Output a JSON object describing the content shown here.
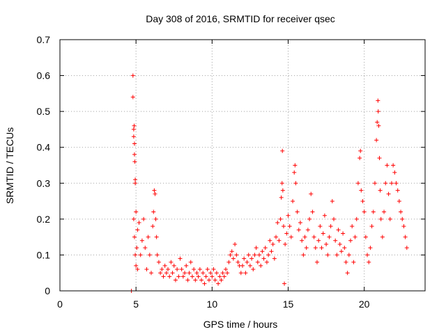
{
  "chart_data": {
    "type": "scatter",
    "title": "Day 308 of 2016, SRMTID for receiver qsec",
    "xlabel": "GPS time / hours",
    "ylabel": "SRMTID / TECUs",
    "xlim": [
      0,
      24
    ],
    "ylim": [
      0,
      0.7
    ],
    "xticks": [
      0,
      5,
      10,
      15,
      20
    ],
    "xtick_labels": [
      "0",
      "5",
      "10",
      "15",
      "20"
    ],
    "yticks": [
      0,
      0.1,
      0.2,
      0.3,
      0.4,
      0.5,
      0.6,
      0.7
    ],
    "ytick_labels": [
      "0",
      "0.1",
      "0.2",
      "0.3",
      "0.4",
      "0.5",
      "0.6",
      "0.7"
    ],
    "grid": true,
    "marker": "+",
    "color": "#ff0000",
    "series": [
      {
        "name": "SRMTID",
        "points": [
          [
            4.7,
            0.0
          ],
          [
            4.8,
            0.6
          ],
          [
            4.8,
            0.54
          ],
          [
            4.85,
            0.45
          ],
          [
            4.85,
            0.43
          ],
          [
            4.88,
            0.46
          ],
          [
            4.9,
            0.41
          ],
          [
            4.9,
            0.38
          ],
          [
            4.92,
            0.36
          ],
          [
            4.95,
            0.31
          ],
          [
            4.95,
            0.3
          ],
          [
            4.85,
            0.2
          ],
          [
            4.9,
            0.15
          ],
          [
            4.95,
            0.1
          ],
          [
            5.0,
            0.22
          ],
          [
            5.0,
            0.07
          ],
          [
            5.05,
            0.12
          ],
          [
            5.1,
            0.17
          ],
          [
            5.1,
            0.06
          ],
          [
            5.2,
            0.19
          ],
          [
            5.3,
            0.1
          ],
          [
            5.4,
            0.14
          ],
          [
            5.5,
            0.2
          ],
          [
            5.6,
            0.12
          ],
          [
            5.7,
            0.06
          ],
          [
            5.8,
            0.15
          ],
          [
            5.9,
            0.1
          ],
          [
            6.0,
            0.05
          ],
          [
            6.1,
            0.18
          ],
          [
            6.15,
            0.22
          ],
          [
            6.2,
            0.28
          ],
          [
            6.25,
            0.27
          ],
          [
            6.3,
            0.2
          ],
          [
            6.35,
            0.15
          ],
          [
            6.4,
            0.1
          ],
          [
            6.5,
            0.08
          ],
          [
            6.6,
            0.05
          ],
          [
            6.7,
            0.06
          ],
          [
            6.8,
            0.04
          ],
          [
            6.9,
            0.07
          ],
          [
            7.0,
            0.05
          ],
          [
            7.1,
            0.06
          ],
          [
            7.2,
            0.04
          ],
          [
            7.3,
            0.08
          ],
          [
            7.4,
            0.05
          ],
          [
            7.5,
            0.07
          ],
          [
            7.6,
            0.03
          ],
          [
            7.7,
            0.06
          ],
          [
            7.8,
            0.04
          ],
          [
            7.9,
            0.09
          ],
          [
            8.0,
            0.06
          ],
          [
            8.1,
            0.04
          ],
          [
            8.2,
            0.05
          ],
          [
            8.3,
            0.07
          ],
          [
            8.4,
            0.03
          ],
          [
            8.5,
            0.05
          ],
          [
            8.6,
            0.08
          ],
          [
            8.7,
            0.04
          ],
          [
            8.8,
            0.06
          ],
          [
            8.9,
            0.03
          ],
          [
            9.0,
            0.05
          ],
          [
            9.1,
            0.04
          ],
          [
            9.2,
            0.06
          ],
          [
            9.3,
            0.03
          ],
          [
            9.4,
            0.05
          ],
          [
            9.5,
            0.02
          ],
          [
            9.6,
            0.04
          ],
          [
            9.7,
            0.06
          ],
          [
            9.8,
            0.03
          ],
          [
            9.9,
            0.05
          ],
          [
            10.0,
            0.04
          ],
          [
            10.1,
            0.06
          ],
          [
            10.2,
            0.03
          ],
          [
            10.3,
            0.05
          ],
          [
            10.4,
            0.02
          ],
          [
            10.5,
            0.04
          ],
          [
            10.6,
            0.03
          ],
          [
            10.7,
            0.05
          ],
          [
            10.8,
            0.04
          ],
          [
            10.9,
            0.06
          ],
          [
            11.0,
            0.05
          ],
          [
            11.1,
            0.08
          ],
          [
            11.2,
            0.1
          ],
          [
            11.3,
            0.11
          ],
          [
            11.4,
            0.09
          ],
          [
            11.5,
            0.13
          ],
          [
            11.6,
            0.1
          ],
          [
            11.7,
            0.08
          ],
          [
            11.8,
            0.07
          ],
          [
            11.9,
            0.05
          ],
          [
            12.0,
            0.07
          ],
          [
            12.1,
            0.09
          ],
          [
            12.2,
            0.05
          ],
          [
            12.3,
            0.08
          ],
          [
            12.4,
            0.1
          ],
          [
            12.5,
            0.07
          ],
          [
            12.6,
            0.09
          ],
          [
            12.7,
            0.06
          ],
          [
            12.8,
            0.1
          ],
          [
            12.9,
            0.12
          ],
          [
            13.0,
            0.08
          ],
          [
            13.1,
            0.1
          ],
          [
            13.2,
            0.07
          ],
          [
            13.3,
            0.11
          ],
          [
            13.4,
            0.09
          ],
          [
            13.5,
            0.12
          ],
          [
            13.6,
            0.08
          ],
          [
            13.7,
            0.1
          ],
          [
            13.8,
            0.14
          ],
          [
            13.9,
            0.11
          ],
          [
            14.0,
            0.13
          ],
          [
            14.1,
            0.09
          ],
          [
            14.2,
            0.15
          ],
          [
            14.3,
            0.19
          ],
          [
            14.4,
            0.14
          ],
          [
            14.5,
            0.2
          ],
          [
            14.55,
            0.26
          ],
          [
            14.6,
            0.3
          ],
          [
            14.62,
            0.39
          ],
          [
            14.65,
            0.28
          ],
          [
            14.7,
            0.18
          ],
          [
            14.75,
            0.02
          ],
          [
            14.8,
            0.13
          ],
          [
            14.9,
            0.16
          ],
          [
            15.0,
            0.21
          ],
          [
            15.1,
            0.18
          ],
          [
            15.2,
            0.15
          ],
          [
            15.3,
            0.25
          ],
          [
            15.4,
            0.33
          ],
          [
            15.45,
            0.35
          ],
          [
            15.5,
            0.3
          ],
          [
            15.6,
            0.22
          ],
          [
            15.7,
            0.17
          ],
          [
            15.8,
            0.19
          ],
          [
            15.9,
            0.14
          ],
          [
            16.0,
            0.1
          ],
          [
            16.1,
            0.15
          ],
          [
            16.2,
            0.12
          ],
          [
            16.3,
            0.17
          ],
          [
            16.4,
            0.2
          ],
          [
            16.5,
            0.27
          ],
          [
            16.6,
            0.22
          ],
          [
            16.7,
            0.15
          ],
          [
            16.8,
            0.12
          ],
          [
            16.9,
            0.08
          ],
          [
            17.0,
            0.14
          ],
          [
            17.1,
            0.18
          ],
          [
            17.2,
            0.12
          ],
          [
            17.3,
            0.16
          ],
          [
            17.4,
            0.21
          ],
          [
            17.5,
            0.13
          ],
          [
            17.6,
            0.1
          ],
          [
            17.7,
            0.15
          ],
          [
            17.8,
            0.18
          ],
          [
            17.9,
            0.25
          ],
          [
            18.0,
            0.2
          ],
          [
            18.1,
            0.14
          ],
          [
            18.2,
            0.1
          ],
          [
            18.3,
            0.17
          ],
          [
            18.4,
            0.13
          ],
          [
            18.5,
            0.11
          ],
          [
            18.6,
            0.16
          ],
          [
            18.7,
            0.12
          ],
          [
            18.8,
            0.08
          ],
          [
            18.9,
            0.05
          ],
          [
            19.0,
            0.1
          ],
          [
            19.1,
            0.14
          ],
          [
            19.2,
            0.18
          ],
          [
            19.3,
            0.08
          ],
          [
            19.4,
            0.15
          ],
          [
            19.5,
            0.2
          ],
          [
            19.6,
            0.3
          ],
          [
            19.7,
            0.37
          ],
          [
            19.75,
            0.39
          ],
          [
            19.8,
            0.28
          ],
          [
            19.9,
            0.25
          ],
          [
            20.0,
            0.22
          ],
          [
            20.1,
            0.15
          ],
          [
            20.2,
            0.1
          ],
          [
            20.3,
            0.08
          ],
          [
            20.4,
            0.12
          ],
          [
            20.5,
            0.18
          ],
          [
            20.6,
            0.22
          ],
          [
            20.7,
            0.3
          ],
          [
            20.8,
            0.42
          ],
          [
            20.85,
            0.47
          ],
          [
            20.9,
            0.53
          ],
          [
            20.92,
            0.5
          ],
          [
            20.95,
            0.46
          ],
          [
            21.0,
            0.37
          ],
          [
            21.05,
            0.28
          ],
          [
            21.1,
            0.2
          ],
          [
            21.2,
            0.15
          ],
          [
            21.3,
            0.22
          ],
          [
            21.4,
            0.3
          ],
          [
            21.5,
            0.35
          ],
          [
            21.6,
            0.27
          ],
          [
            21.7,
            0.2
          ],
          [
            21.8,
            0.3
          ],
          [
            21.9,
            0.35
          ],
          [
            22.0,
            0.33
          ],
          [
            22.1,
            0.3
          ],
          [
            22.2,
            0.28
          ],
          [
            22.3,
            0.25
          ],
          [
            22.4,
            0.22
          ],
          [
            22.5,
            0.2
          ],
          [
            22.6,
            0.18
          ],
          [
            22.7,
            0.15
          ],
          [
            22.8,
            0.12
          ]
        ]
      }
    ]
  }
}
